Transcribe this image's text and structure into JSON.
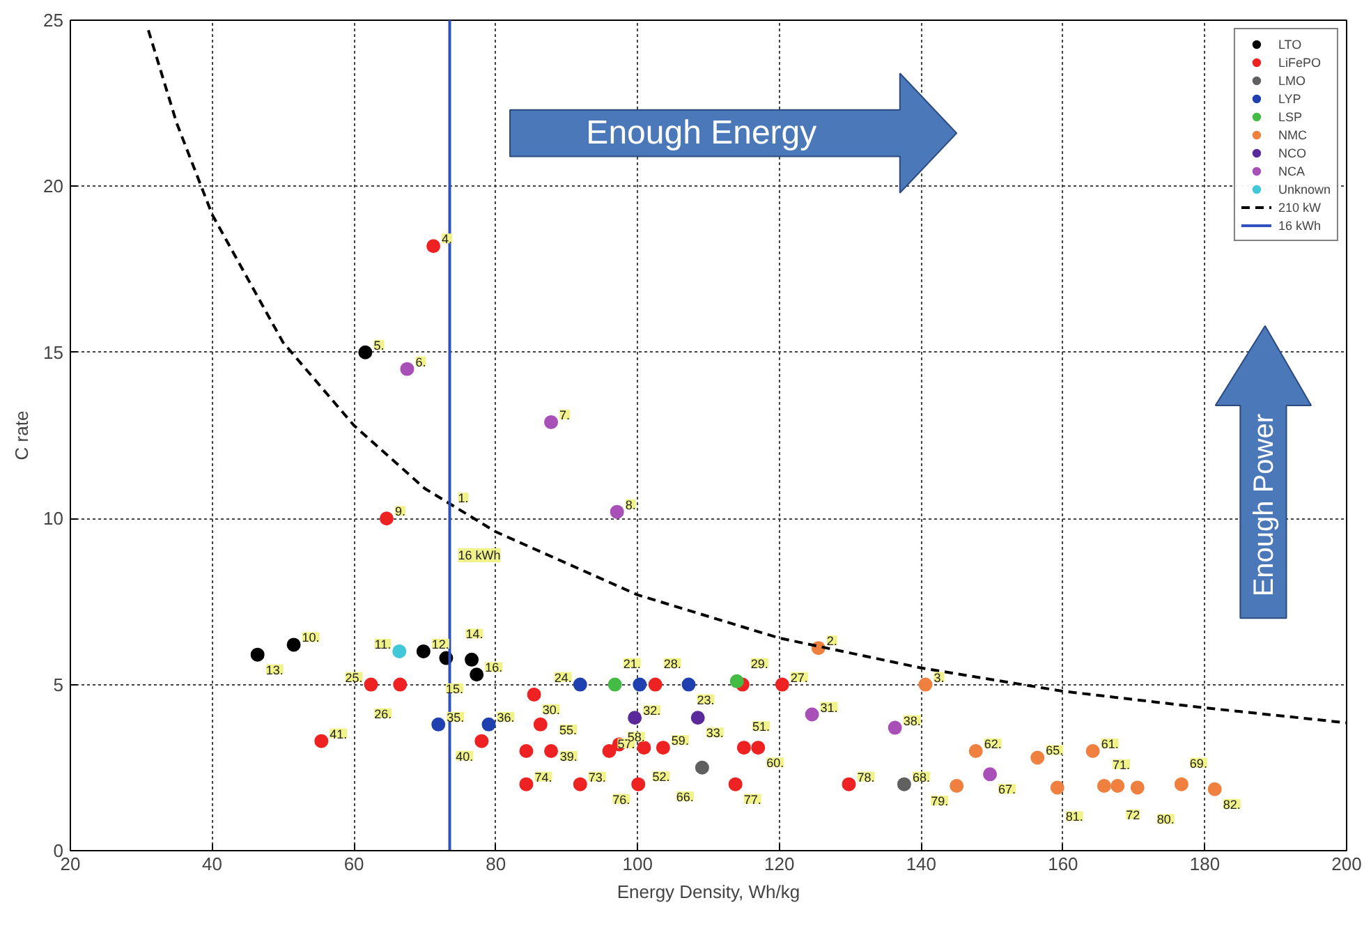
{
  "chart_data": {
    "type": "scatter",
    "xlabel": "Energy Density, Wh/kg",
    "ylabel": "C rate",
    "xlim": [
      20,
      200
    ],
    "ylim": [
      0,
      25
    ],
    "xticks": [
      20,
      40,
      60,
      80,
      100,
      120,
      140,
      160,
      180,
      200
    ],
    "yticks": [
      0,
      5,
      10,
      15,
      20,
      25
    ],
    "grid": true,
    "legend": "top right",
    "marker": "circle",
    "series": [
      {
        "name": "LTO",
        "color": "#000000",
        "x": [
          61.6,
          46.4,
          51.5,
          69.8,
          73.0,
          76.6,
          77.3
        ],
        "values": [
          15.0,
          5.9,
          6.2,
          6.0,
          5.8,
          5.75,
          5.3
        ]
      },
      {
        "name": "LiFePO",
        "color": "#ee2222",
        "x": [
          71.2,
          64.6,
          62.4,
          66.5,
          55.4,
          85.4,
          86.3,
          78.0,
          84.3,
          87.8,
          96.0,
          97.4,
          100.9,
          103.6,
          84.3,
          91.9,
          100.1,
          113.8,
          115.0,
          117.0,
          129.8,
          102.5,
          114.8,
          120.4
        ],
        "values": [
          18.2,
          10.0,
          5.0,
          5.0,
          3.3,
          4.7,
          3.8,
          3.3,
          3.0,
          3.0,
          3.0,
          3.2,
          3.1,
          3.1,
          2.0,
          2.0,
          2.0,
          2.0,
          3.1,
          3.1,
          2.0,
          5.0,
          5.0,
          5.0
        ]
      },
      {
        "name": "LMO",
        "color": "#606060",
        "x": [
          109.1,
          137.6
        ],
        "values": [
          2.5,
          2.0
        ]
      },
      {
        "name": "LYP",
        "color": "#2040b0",
        "x": [
          71.9,
          79.0,
          91.9,
          100.3,
          107.2
        ],
        "values": [
          3.8,
          3.8,
          5.0,
          5.0,
          5.0
        ]
      },
      {
        "name": "LSP",
        "color": "#44bb44",
        "x": [
          96.8,
          114.0
        ],
        "values": [
          5.0,
          5.1
        ]
      },
      {
        "name": "NMC",
        "color": "#f08040",
        "x": [
          125.5,
          140.6,
          147.7,
          156.4,
          164.2,
          145.0,
          159.2,
          165.8,
          167.7,
          170.5,
          176.7,
          181.4
        ],
        "values": [
          6.1,
          5.0,
          3.0,
          2.8,
          3.0,
          1.95,
          1.9,
          1.95,
          1.95,
          1.9,
          2.0,
          1.85
        ]
      },
      {
        "name": "NCO",
        "color": "#5a2a9a",
        "x": [
          99.6,
          108.5
        ],
        "values": [
          4.0,
          4.0
        ]
      },
      {
        "name": "NCA",
        "color": "#a850b8",
        "x": [
          67.5,
          87.8,
          97.1,
          124.6,
          136.3,
          149.7
        ],
        "values": [
          14.5,
          12.9,
          10.2,
          4.1,
          3.7,
          2.3
        ]
      },
      {
        "name": "Unknown",
        "color": "#40c8d8",
        "x": [
          66.4
        ],
        "values": [
          6.0
        ]
      },
      {
        "name": "210 kW",
        "type": "line",
        "color": "#000000",
        "line_style": "dashed",
        "marker": "none",
        "x": [
          31,
          35,
          40,
          50,
          60,
          70,
          80,
          100,
          120,
          140,
          160,
          180,
          200
        ],
        "values": [
          24.7,
          21.9,
          19.15,
          15.3,
          12.8,
          10.9,
          9.6,
          7.7,
          6.4,
          5.5,
          4.8,
          4.3,
          3.85
        ]
      },
      {
        "name": "16 kWh",
        "type": "line",
        "color": "#3050c0",
        "line_style": "solid",
        "marker": "none",
        "x": [
          73.5,
          73.5
        ],
        "values": [
          0,
          25
        ]
      }
    ],
    "annotations": [
      "Enough Energy",
      "Enough Power",
      {
        "text": "16 kWh",
        "x": 73.5,
        "y": 8.6
      },
      {
        "text": "1.",
        "x": 73.5,
        "y": 10.4
      },
      {
        "text": "2.",
        "x": 125.5,
        "y": 6.1
      },
      {
        "text": "3.",
        "x": 140.6,
        "y": 5.0
      },
      {
        "text": "4.",
        "x": 71.2,
        "y": 18.2
      },
      {
        "text": "5.",
        "x": 61.6,
        "y": 15.0
      },
      {
        "text": "6.",
        "x": 67.5,
        "y": 14.5
      },
      {
        "text": "7.",
        "x": 87.8,
        "y": 12.9
      },
      {
        "text": "8.",
        "x": 97.1,
        "y": 10.2
      },
      {
        "text": "9.",
        "x": 64.6,
        "y": 10.0
      },
      {
        "text": "10.",
        "x": 51.5,
        "y": 6.2
      },
      {
        "text": "11.",
        "x": 66.4,
        "y": 6.0
      },
      {
        "text": "12.",
        "x": 69.8,
        "y": 6.0
      },
      {
        "text": "13.",
        "x": 46.4,
        "y": 5.9
      },
      {
        "text": "14.",
        "x": 73.0,
        "y": 5.8
      },
      {
        "text": "15.",
        "x": 76.6,
        "y": 5.75
      },
      {
        "text": "16.",
        "x": 77.3,
        "y": 5.3
      },
      {
        "text": "21.",
        "x": 96.8,
        "y": 5.0
      },
      {
        "text": "28.",
        "x": 102.5,
        "y": 5.0
      },
      {
        "text": "23.",
        "x": 107.2,
        "y": 5.0
      },
      {
        "text": "24.",
        "x": 91.9,
        "y": 5.0
      },
      {
        "text": "25.",
        "x": 62.4,
        "y": 5.0
      },
      {
        "text": "26.",
        "x": 66.5,
        "y": 5.0
      },
      {
        "text": "27.",
        "x": 120.4,
        "y": 5.0
      },
      {
        "text": "29.",
        "x": 114.8,
        "y": 5.0
      },
      {
        "text": "30.",
        "x": 85.4,
        "y": 4.7
      },
      {
        "text": "31.",
        "x": 124.6,
        "y": 4.1
      },
      {
        "text": "32.",
        "x": 99.6,
        "y": 4.0
      },
      {
        "text": "33.",
        "x": 108.5,
        "y": 4.0
      },
      {
        "text": "35.",
        "x": 71.9,
        "y": 3.8
      },
      {
        "text": "36.",
        "x": 79.0,
        "y": 3.8
      },
      {
        "text": "38.",
        "x": 136.3,
        "y": 3.7
      },
      {
        "text": "39.",
        "x": 86.3,
        "y": 3.8
      },
      {
        "text": "40.",
        "x": 78.0,
        "y": 3.3
      },
      {
        "text": "41.",
        "x": 55.4,
        "y": 3.3
      },
      {
        "text": "51.",
        "x": 115.0,
        "y": 3.1
      },
      {
        "text": "52.",
        "x": 100.9,
        "y": 3.1
      },
      {
        "text": "55.",
        "x": 87.8,
        "y": 3.0
      },
      {
        "text": "57.",
        "x": 96.0,
        "y": 3.0
      },
      {
        "text": "58.",
        "x": 97.4,
        "y": 3.2
      },
      {
        "text": "59.",
        "x": 103.6,
        "y": 3.1
      },
      {
        "text": "60.",
        "x": 117.0,
        "y": 3.1
      },
      {
        "text": "61.",
        "x": 164.2,
        "y": 3.0
      },
      {
        "text": "62.",
        "x": 147.7,
        "y": 3.0
      },
      {
        "text": "65.",
        "x": 156.4,
        "y": 2.8
      },
      {
        "text": "66.",
        "x": 109.1,
        "y": 2.5
      },
      {
        "text": "67.",
        "x": 149.7,
        "y": 2.3
      },
      {
        "text": "68.",
        "x": 137.6,
        "y": 2.0
      },
      {
        "text": "69.",
        "x": 176.7,
        "y": 2.0
      },
      {
        "text": "71.",
        "x": 165.8,
        "y": 1.95
      },
      {
        "text": "72",
        "x": 167.7,
        "y": 1.95
      },
      {
        "text": "73.",
        "x": 91.9,
        "y": 2.0
      },
      {
        "text": "74.",
        "x": 84.3,
        "y": 2.0
      },
      {
        "text": "76.",
        "x": 100.1,
        "y": 2.0
      },
      {
        "text": "77.",
        "x": 113.8,
        "y": 2.0
      },
      {
        "text": "78.",
        "x": 129.8,
        "y": 2.0
      },
      {
        "text": "79.",
        "x": 145.0,
        "y": 1.95
      },
      {
        "text": "80.",
        "x": 170.5,
        "y": 1.9
      },
      {
        "text": "81.",
        "x": 159.2,
        "y": 1.9
      },
      {
        "text": "82.",
        "x": 181.4,
        "y": 1.85
      }
    ]
  }
}
